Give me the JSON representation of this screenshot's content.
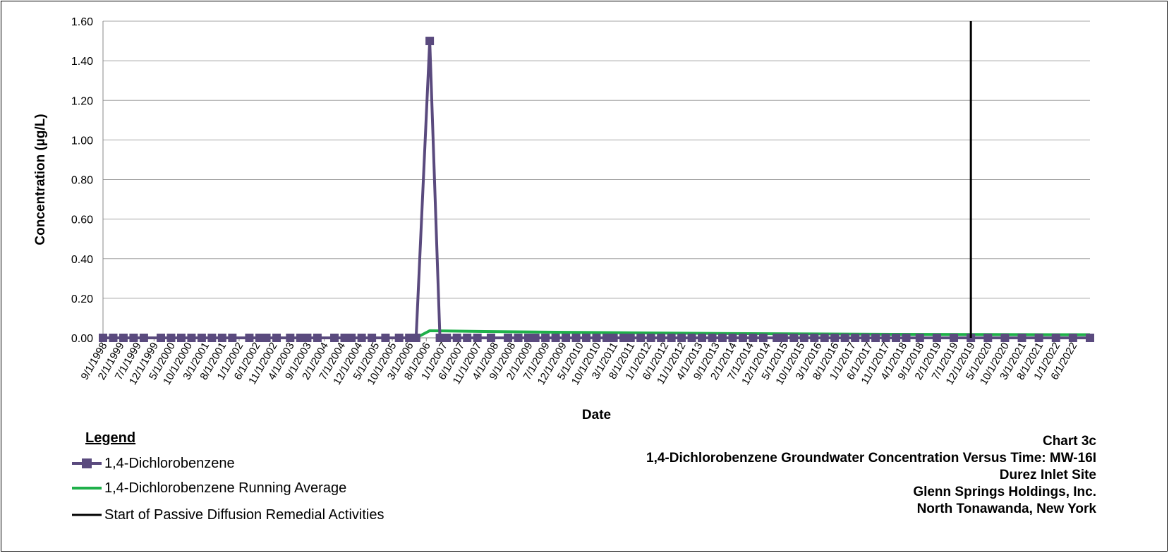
{
  "chart_data": {
    "type": "line",
    "xlabel": "Date",
    "ylabel": "Concentration (µg/L)",
    "ylim": [
      0,
      1.6
    ],
    "y_ticks": [
      "0.00",
      "0.20",
      "0.40",
      "0.60",
      "0.80",
      "1.00",
      "1.20",
      "1.40",
      "1.60"
    ],
    "x_ticks": [
      "9/1/1998",
      "2/1/1999",
      "7/1/1999",
      "12/1/1999",
      "5/1/2000",
      "10/1/2000",
      "3/1/2001",
      "8/1/2001",
      "1/1/2002",
      "6/1/2002",
      "11/1/2002",
      "4/1/2003",
      "9/1/2003",
      "2/1/2004",
      "7/1/2004",
      "12/1/2004",
      "5/1/2005",
      "10/1/2005",
      "3/1/2006",
      "8/1/2006",
      "1/1/2007",
      "6/1/2007",
      "11/1/2007",
      "4/1/2008",
      "9/1/2008",
      "2/1/2009",
      "7/1/2009",
      "12/1/2009",
      "5/1/2010",
      "10/1/2010",
      "3/1/2011",
      "8/1/2011",
      "1/1/2012",
      "6/1/2012",
      "11/1/2012",
      "4/1/2013",
      "9/1/2013",
      "2/1/2014",
      "7/1/2014",
      "12/1/2014",
      "5/1/2015",
      "10/1/2015",
      "3/1/2016",
      "8/1/2016",
      "1/1/2017",
      "6/1/2017",
      "11/1/2017",
      "4/1/2018",
      "9/1/2018",
      "2/1/2019",
      "7/1/2019",
      "12/1/2019",
      "5/1/2020",
      "10/1/2020",
      "3/1/2021",
      "8/1/2021",
      "1/1/2022",
      "6/1/2022"
    ],
    "grid": true,
    "series": [
      {
        "name": "1,4-Dichlorobenzene",
        "color": "#5a4a7e",
        "marker": "square",
        "points": [
          [
            "9/1/1998",
            0
          ],
          [
            "12/1/1998",
            0
          ],
          [
            "3/1/1999",
            0
          ],
          [
            "6/1/1999",
            0
          ],
          [
            "9/1/1999",
            0
          ],
          [
            "2/1/2000",
            0
          ],
          [
            "5/1/2000",
            0
          ],
          [
            "8/1/2000",
            0
          ],
          [
            "11/1/2000",
            0
          ],
          [
            "2/1/2001",
            0
          ],
          [
            "5/1/2001",
            0
          ],
          [
            "8/1/2001",
            0
          ],
          [
            "11/1/2001",
            0
          ],
          [
            "4/1/2002",
            0
          ],
          [
            "7/1/2002",
            0
          ],
          [
            "9/1/2002",
            0
          ],
          [
            "12/1/2002",
            0
          ],
          [
            "4/1/2003",
            0
          ],
          [
            "7/1/2003",
            0
          ],
          [
            "9/1/2003",
            0
          ],
          [
            "12/1/2003",
            0
          ],
          [
            "5/1/2004",
            0
          ],
          [
            "8/1/2004",
            0
          ],
          [
            "10/1/2004",
            0
          ],
          [
            "1/1/2005",
            0
          ],
          [
            "4/1/2005",
            0
          ],
          [
            "8/1/2005",
            0
          ],
          [
            "12/1/2005",
            0
          ],
          [
            "3/1/2006",
            0
          ],
          [
            "5/1/2006",
            0
          ],
          [
            "9/1/2006",
            1.5
          ],
          [
            "12/1/2006",
            0
          ],
          [
            "2/1/2007",
            0
          ],
          [
            "5/1/2007",
            0
          ],
          [
            "8/1/2007",
            0
          ],
          [
            "11/1/2007",
            0
          ],
          [
            "3/1/2008",
            0
          ],
          [
            "8/1/2008",
            0
          ],
          [
            "11/1/2008",
            0
          ],
          [
            "2/1/2009",
            0
          ],
          [
            "4/1/2009",
            0
          ],
          [
            "7/1/2009",
            0
          ],
          [
            "10/1/2009",
            0
          ],
          [
            "1/1/2010",
            0
          ],
          [
            "4/1/2010",
            0
          ],
          [
            "7/1/2010",
            0
          ],
          [
            "10/1/2010",
            0
          ],
          [
            "1/1/2011",
            0
          ],
          [
            "3/1/2011",
            0
          ],
          [
            "6/1/2011",
            0
          ],
          [
            "8/1/2011",
            0
          ],
          [
            "11/1/2011",
            0
          ],
          [
            "2/1/2012",
            0
          ],
          [
            "5/1/2012",
            0
          ],
          [
            "8/1/2012",
            0
          ],
          [
            "11/1/2012",
            0
          ],
          [
            "2/1/2013",
            0
          ],
          [
            "5/1/2013",
            0
          ],
          [
            "8/1/2013",
            0
          ],
          [
            "11/1/2013",
            0
          ],
          [
            "2/1/2014",
            0
          ],
          [
            "5/1/2014",
            0
          ],
          [
            "8/1/2014",
            0
          ],
          [
            "11/1/2014",
            0
          ],
          [
            "3/1/2015",
            0
          ],
          [
            "5/1/2015",
            0
          ],
          [
            "8/1/2015",
            0
          ],
          [
            "11/1/2015",
            0
          ],
          [
            "2/1/2016",
            0
          ],
          [
            "5/1/2016",
            0
          ],
          [
            "8/1/2016",
            0
          ],
          [
            "11/1/2016",
            0
          ],
          [
            "2/1/2017",
            0
          ],
          [
            "5/1/2017",
            0
          ],
          [
            "8/1/2017",
            0
          ],
          [
            "11/1/2017",
            0
          ],
          [
            "2/1/2018",
            0
          ],
          [
            "5/1/2018",
            0
          ],
          [
            "9/1/2018",
            0
          ],
          [
            "2/1/2019",
            0
          ],
          [
            "7/1/2019",
            0
          ],
          [
            "12/1/2019",
            0
          ],
          [
            "5/1/2020",
            0
          ],
          [
            "10/1/2020",
            0
          ],
          [
            "3/1/2021",
            0
          ],
          [
            "8/1/2021",
            0
          ],
          [
            "1/1/2022",
            0
          ],
          [
            "6/1/2022",
            0
          ],
          [
            "11/1/2022",
            0
          ]
        ]
      },
      {
        "name": "1,4-Dichlorobenzene Running Average",
        "color": "#1fb04a",
        "marker": "none",
        "points": [
          [
            "9/1/1998",
            0
          ],
          [
            "5/1/2006",
            0
          ],
          [
            "9/1/2006",
            0.036
          ],
          [
            "1/1/2008",
            0.032
          ],
          [
            "1/1/2010",
            0.028
          ],
          [
            "1/1/2012",
            0.025
          ],
          [
            "1/1/2014",
            0.022
          ],
          [
            "1/1/2016",
            0.02
          ],
          [
            "1/1/2018",
            0.018
          ],
          [
            "1/1/2020",
            0.017
          ],
          [
            "1/1/2022",
            0.016
          ],
          [
            "11/1/2022",
            0.016
          ]
        ]
      }
    ],
    "vertical_marker": {
      "name": "Start of Passive Diffusion Remedial Activities",
      "x": "12/1/2019",
      "color": "#000000"
    }
  },
  "legend": {
    "title": "Legend",
    "items": [
      {
        "label": "1,4-Dichlorobenzene",
        "color": "#5a4a7e",
        "marker": "square"
      },
      {
        "label": "1,4-Dichlorobenzene Running Average",
        "color": "#1fb04a",
        "marker": "none"
      },
      {
        "label": "Start of Passive Diffusion Remedial Activities",
        "color": "#000000",
        "marker": "none"
      }
    ]
  },
  "title_block": {
    "line1": "Chart 3c",
    "line2": "1,4-Dichlorobenzene Groundwater Concentration Versus Time: MW-16I",
    "line3": "Durez Inlet Site",
    "line4": "Glenn Springs Holdings, Inc.",
    "line5": "North Tonawanda, New York"
  }
}
